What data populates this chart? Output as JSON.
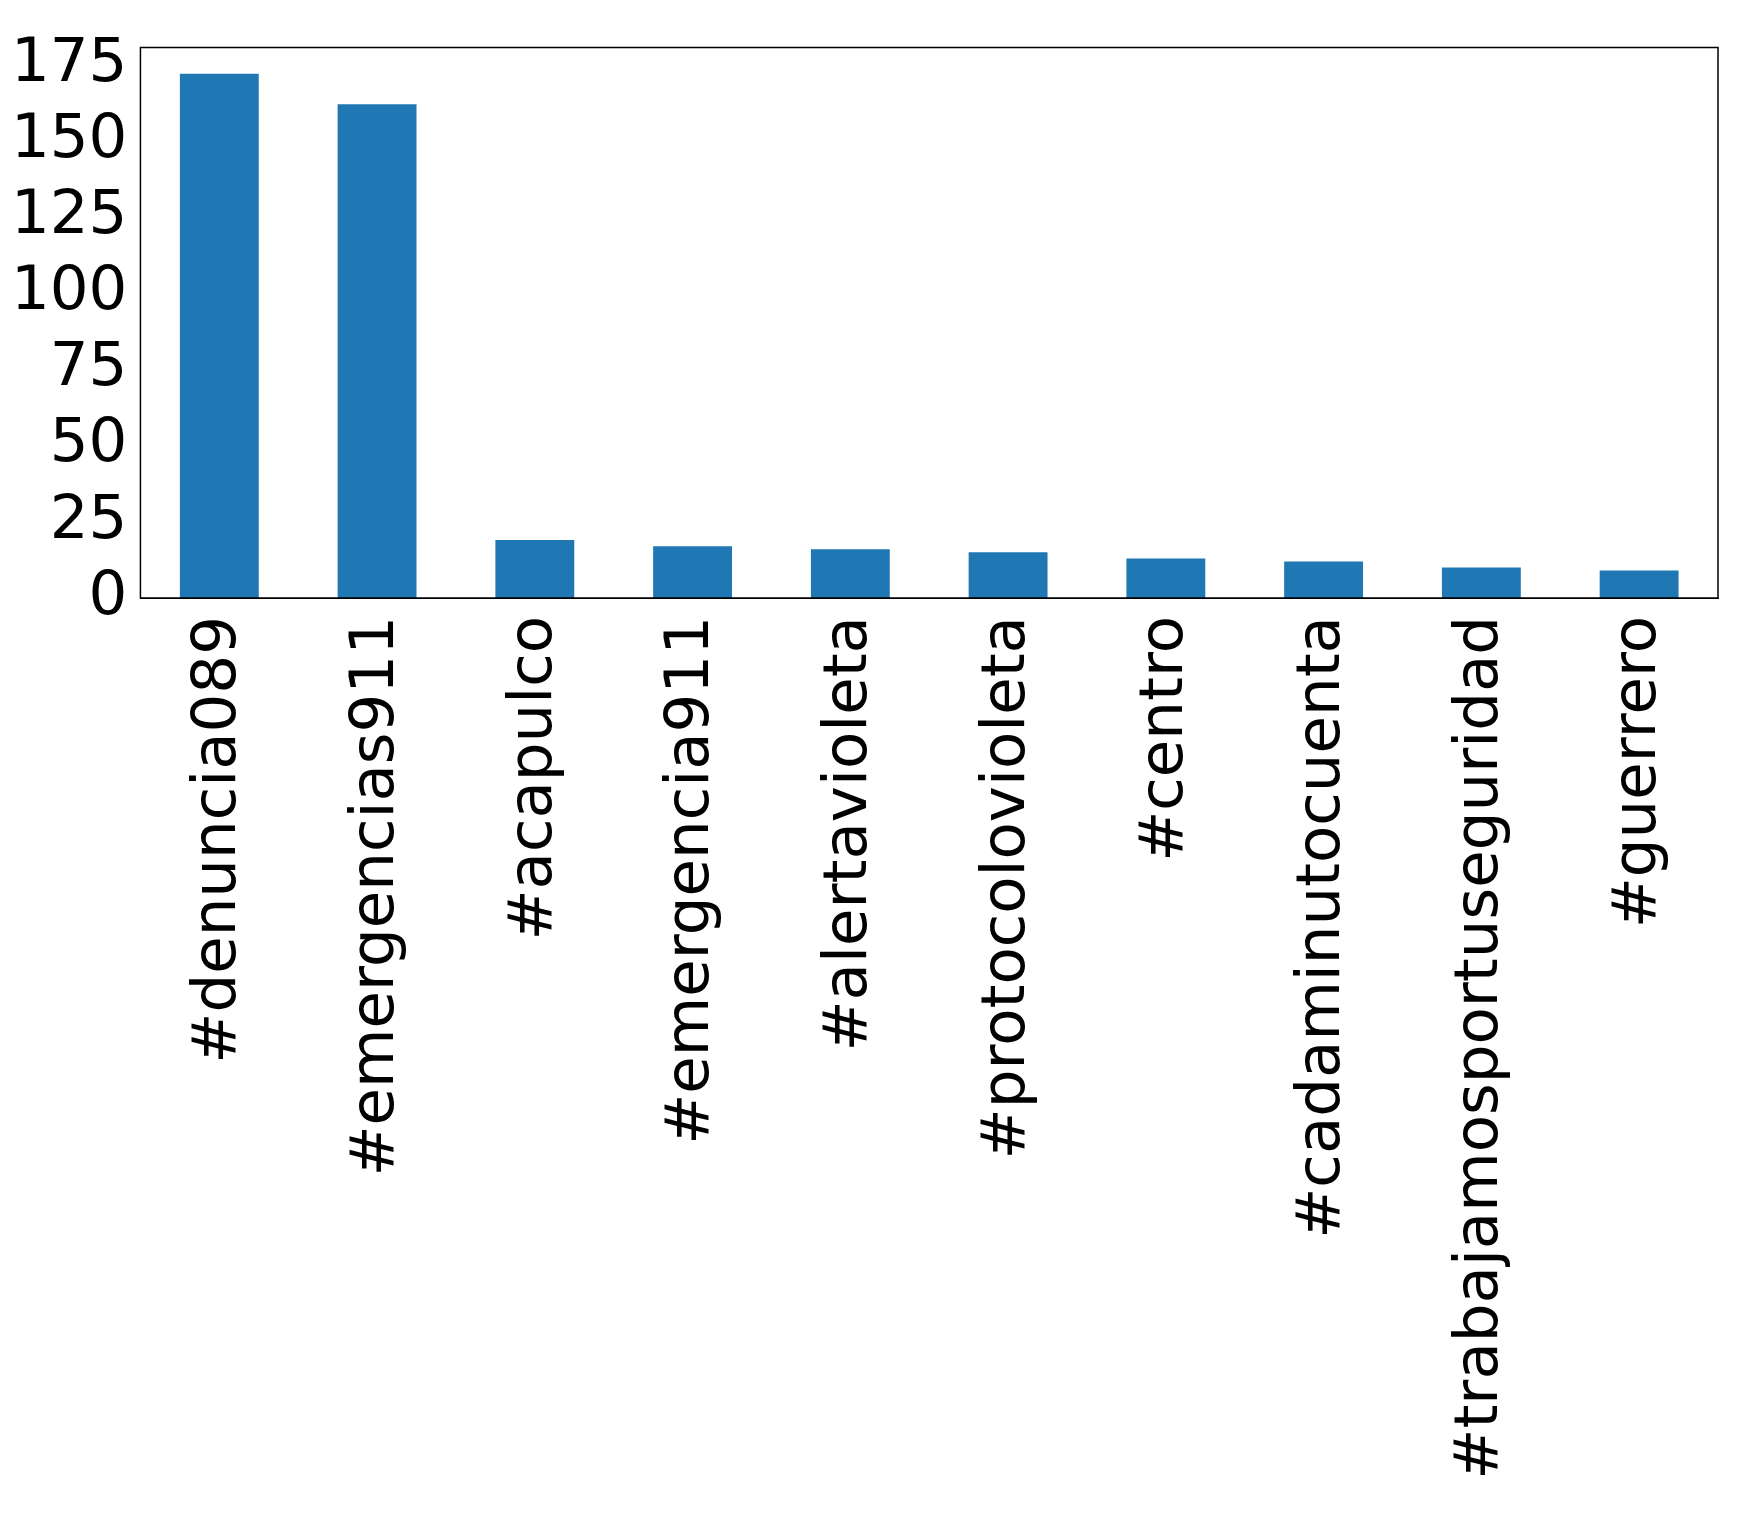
{
  "chart_data": {
    "type": "bar",
    "categories": [
      "#denuncia089",
      "#emergencias911",
      "#acapulco",
      "#emergencia911",
      "#alertavioleta",
      "#protocolovioleta",
      "#centro",
      "#cadaminutocuenta",
      "#trabajamosportuseguridad",
      "#guerrero"
    ],
    "values": [
      172,
      162,
      19,
      17,
      16,
      15,
      13,
      12,
      10,
      9
    ],
    "color": "#1f77b4",
    "ylim": [
      0,
      180.6
    ],
    "yticks": [
      0,
      25,
      50,
      75,
      100,
      125,
      150,
      175
    ],
    "grid": false,
    "legend": false
  }
}
